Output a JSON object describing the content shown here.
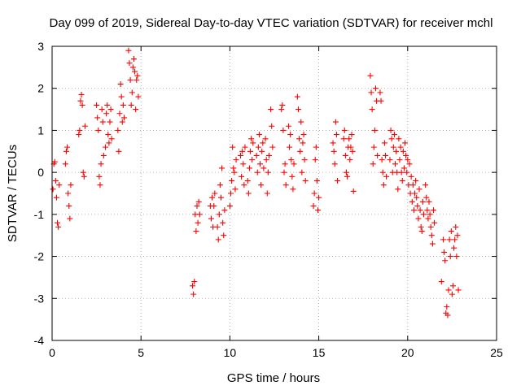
{
  "chart_data": {
    "type": "scatter",
    "title": "Day 099 of 2019, Sidereal Day-to-day VTEC variation (SDTVAR) for receiver mchl",
    "xlabel": "GPS time / hours",
    "ylabel": "SDTVAR / TECUs",
    "xlim": [
      0,
      25
    ],
    "ylim": [
      -4,
      3
    ],
    "x_ticks": [
      "0",
      "5",
      "10",
      "15",
      "20",
      "25"
    ],
    "y_ticks": [
      "-4",
      "-3",
      "-2",
      "-1",
      "0",
      "1",
      "2",
      "3"
    ],
    "grid": true,
    "marker": "+",
    "series": [
      {
        "name": "SDTVAR",
        "color": "#ff0000",
        "segments": [
          [
            0.05,
            -0.4
          ],
          [
            0.1,
            0.2
          ],
          [
            0.15,
            0.25
          ],
          [
            0.2,
            -0.2
          ],
          [
            0.25,
            -0.6
          ],
          [
            0.3,
            -1.2
          ],
          [
            0.35,
            -1.3
          ],
          [
            0.4,
            -0.3
          ],
          [
            0.75,
            0.2
          ],
          [
            0.8,
            0.5
          ],
          [
            0.85,
            0.6
          ],
          [
            0.9,
            -0.5
          ],
          [
            0.95,
            -0.8
          ],
          [
            1.0,
            -1.1
          ],
          [
            1.05,
            -0.3
          ],
          [
            1.5,
            0.9
          ],
          [
            1.55,
            1.0
          ],
          [
            1.6,
            1.7
          ],
          [
            1.65,
            1.85
          ],
          [
            1.7,
            1.6
          ],
          [
            1.75,
            0.0
          ],
          [
            1.8,
            -0.1
          ],
          [
            1.85,
            1.1
          ],
          [
            2.5,
            1.6
          ],
          [
            2.55,
            1.3
          ],
          [
            2.6,
            1.0
          ],
          [
            2.65,
            -0.1
          ],
          [
            2.7,
            -0.3
          ],
          [
            2.75,
            0.2
          ],
          [
            2.8,
            1.5
          ],
          [
            2.85,
            1.2
          ],
          [
            2.9,
            0.4
          ],
          [
            3.0,
            0.6
          ],
          [
            3.05,
            1.4
          ],
          [
            3.1,
            1.6
          ],
          [
            3.15,
            0.9
          ],
          [
            3.2,
            0.7
          ],
          [
            3.25,
            1.2
          ],
          [
            3.3,
            1.5
          ],
          [
            3.35,
            0.8
          ],
          [
            3.7,
            1.0
          ],
          [
            3.75,
            0.5
          ],
          [
            3.8,
            1.4
          ],
          [
            3.85,
            2.1
          ],
          [
            3.9,
            1.8
          ],
          [
            3.95,
            1.2
          ],
          [
            4.0,
            1.6
          ],
          [
            4.05,
            1.3
          ],
          [
            4.3,
            2.9
          ],
          [
            4.35,
            2.6
          ],
          [
            4.4,
            2.2
          ],
          [
            4.45,
            1.6
          ],
          [
            4.5,
            1.9
          ],
          [
            4.55,
            2.5
          ],
          [
            4.6,
            2.7
          ],
          [
            4.65,
            2.4
          ],
          [
            4.7,
            1.5
          ],
          [
            4.75,
            2.2
          ],
          [
            4.8,
            2.3
          ],
          [
            4.85,
            1.8
          ],
          [
            7.9,
            -2.7
          ],
          [
            7.95,
            -2.9
          ],
          [
            8.0,
            -2.6
          ],
          [
            8.05,
            -1.0
          ],
          [
            8.1,
            -1.4
          ],
          [
            8.15,
            -0.8
          ],
          [
            8.2,
            -1.2
          ],
          [
            8.25,
            -0.7
          ],
          [
            8.3,
            -1.0
          ],
          [
            8.9,
            -0.8
          ],
          [
            8.95,
            -1.1
          ],
          [
            9.0,
            -0.6
          ],
          [
            9.05,
            -1.3
          ],
          [
            9.1,
            -0.8
          ],
          [
            9.15,
            -0.5
          ],
          [
            9.3,
            -1.3
          ],
          [
            9.35,
            -1.6
          ],
          [
            9.4,
            -1.0
          ],
          [
            9.45,
            -0.3
          ],
          [
            9.5,
            -0.6
          ],
          [
            9.55,
            0.1
          ],
          [
            9.6,
            -1.2
          ],
          [
            9.65,
            -1.5
          ],
          [
            9.7,
            -0.9
          ],
          [
            10.0,
            -0.8
          ],
          [
            10.05,
            -0.5
          ],
          [
            10.1,
            -0.2
          ],
          [
            10.15,
            0.6
          ],
          [
            10.2,
            0.1
          ],
          [
            10.25,
            0.0
          ],
          [
            10.3,
            -0.4
          ],
          [
            10.35,
            0.3
          ],
          [
            10.6,
            0.4
          ],
          [
            10.65,
            -0.1
          ],
          [
            10.7,
            0.5
          ],
          [
            10.75,
            0.2
          ],
          [
            10.8,
            -0.3
          ],
          [
            10.85,
            0.6
          ],
          [
            11.0,
            -0.2
          ],
          [
            11.05,
            -0.5
          ],
          [
            11.1,
            0.1
          ],
          [
            11.15,
            0.5
          ],
          [
            11.2,
            0.8
          ],
          [
            11.25,
            0.3
          ],
          [
            11.3,
            0.7
          ],
          [
            11.5,
            0.4
          ],
          [
            11.55,
            0.0
          ],
          [
            11.6,
            0.6
          ],
          [
            11.65,
            0.9
          ],
          [
            11.7,
            0.2
          ],
          [
            11.75,
            -0.3
          ],
          [
            11.8,
            0.5
          ],
          [
            11.85,
            0.7
          ],
          [
            11.9,
            0.1
          ],
          [
            12.0,
            0.8
          ],
          [
            12.05,
            0.3
          ],
          [
            12.1,
            -0.5
          ],
          [
            12.15,
            0.0
          ],
          [
            12.2,
            0.4
          ],
          [
            12.3,
            1.5
          ],
          [
            12.35,
            1.1
          ],
          [
            12.4,
            0.6
          ],
          [
            12.9,
            1.5
          ],
          [
            12.95,
            1.6
          ],
          [
            13.0,
            1.0
          ],
          [
            13.05,
            0.0
          ],
          [
            13.1,
            0.2
          ],
          [
            13.15,
            -0.3
          ],
          [
            13.3,
            1.1
          ],
          [
            13.35,
            0.6
          ],
          [
            13.4,
            0.9
          ],
          [
            13.45,
            0.3
          ],
          [
            13.5,
            -0.1
          ],
          [
            13.55,
            -0.4
          ],
          [
            13.6,
            0.2
          ],
          [
            13.8,
            1.8
          ],
          [
            13.85,
            1.5
          ],
          [
            13.9,
            0.8
          ],
          [
            13.95,
            0.5
          ],
          [
            14.0,
            1.2
          ],
          [
            14.05,
            0.0
          ],
          [
            14.1,
            0.7
          ],
          [
            14.15,
            0.9
          ],
          [
            14.2,
            0.3
          ],
          [
            14.25,
            -0.2
          ],
          [
            14.7,
            -0.8
          ],
          [
            14.75,
            -0.5
          ],
          [
            14.8,
            0.3
          ],
          [
            14.85,
            0.6
          ],
          [
            14.9,
            -0.2
          ],
          [
            14.95,
            -0.9
          ],
          [
            15.0,
            -0.6
          ],
          [
            15.8,
            0.7
          ],
          [
            15.85,
            0.5
          ],
          [
            15.9,
            0.2
          ],
          [
            15.95,
            1.2
          ],
          [
            16.0,
            0.9
          ],
          [
            16.05,
            -0.2
          ],
          [
            16.4,
            0.8
          ],
          [
            16.45,
            1.0
          ],
          [
            16.5,
            0.4
          ],
          [
            16.55,
            0.0
          ],
          [
            16.6,
            -0.1
          ],
          [
            16.65,
            0.6
          ],
          [
            16.7,
            0.8
          ],
          [
            16.75,
            0.3
          ],
          [
            16.8,
            0.6
          ],
          [
            16.85,
            0.9
          ],
          [
            16.9,
            0.5
          ],
          [
            16.95,
            -0.45
          ],
          [
            17.9,
            2.3
          ],
          [
            17.95,
            1.9
          ],
          [
            18.0,
            1.5
          ],
          [
            18.05,
            0.2
          ],
          [
            18.1,
            0.6
          ],
          [
            18.15,
            1.0
          ],
          [
            18.2,
            2.0
          ],
          [
            18.25,
            1.7
          ],
          [
            18.3,
            0.4
          ],
          [
            18.45,
            1.9
          ],
          [
            18.5,
            1.7
          ],
          [
            18.55,
            0.3
          ],
          [
            18.6,
            0.0
          ],
          [
            18.65,
            -0.3
          ],
          [
            18.7,
            0.7
          ],
          [
            18.75,
            0.4
          ],
          [
            18.8,
            -0.1
          ],
          [
            19.0,
            0.3
          ],
          [
            19.05,
            1.0
          ],
          [
            19.1,
            0.8
          ],
          [
            19.15,
            0.0
          ],
          [
            19.2,
            0.6
          ],
          [
            19.25,
            0.9
          ],
          [
            19.3,
            0.2
          ],
          [
            19.35,
            0.5
          ],
          [
            19.4,
            0.0
          ],
          [
            19.45,
            -0.4
          ],
          [
            19.5,
            0.8
          ],
          [
            19.55,
            0.3
          ],
          [
            19.6,
            0.6
          ],
          [
            19.65,
            0.0
          ],
          [
            19.7,
            -0.2
          ],
          [
            19.75,
            0.5
          ],
          [
            19.8,
            0.1
          ],
          [
            19.85,
            0.7
          ],
          [
            19.9,
            0.4
          ],
          [
            19.95,
            0.0
          ],
          [
            20.0,
            0.3
          ],
          [
            20.05,
            -0.3
          ],
          [
            20.1,
            0.2
          ],
          [
            20.15,
            -0.5
          ],
          [
            20.2,
            -0.1
          ],
          [
            20.25,
            -0.7
          ],
          [
            20.3,
            -0.3
          ],
          [
            20.35,
            -0.9
          ],
          [
            20.4,
            -0.5
          ],
          [
            20.45,
            -0.2
          ],
          [
            20.5,
            -0.6
          ],
          [
            20.55,
            -0.8
          ],
          [
            20.6,
            -1.1
          ],
          [
            20.65,
            -0.4
          ],
          [
            20.7,
            -0.9
          ],
          [
            20.75,
            -1.3
          ],
          [
            20.8,
            -1.4
          ],
          [
            20.85,
            -0.7
          ],
          [
            20.9,
            -1.0
          ],
          [
            21.0,
            -0.3
          ],
          [
            21.05,
            -0.6
          ],
          [
            21.1,
            -0.9
          ],
          [
            21.15,
            -1.1
          ],
          [
            21.2,
            -0.7
          ],
          [
            21.25,
            -1.0
          ],
          [
            21.3,
            -1.3
          ],
          [
            21.35,
            -1.5
          ],
          [
            21.4,
            -1.7
          ],
          [
            21.45,
            -0.9
          ],
          [
            21.5,
            -1.2
          ],
          [
            21.9,
            -2.6
          ],
          [
            22.0,
            -1.6
          ],
          [
            22.05,
            -1.9
          ],
          [
            22.1,
            -2.1
          ],
          [
            22.15,
            -3.35
          ],
          [
            22.2,
            -3.2
          ],
          [
            22.25,
            -3.4
          ],
          [
            22.3,
            -2.8
          ],
          [
            22.35,
            -1.6
          ],
          [
            22.4,
            -2.0
          ],
          [
            22.45,
            -1.4
          ],
          [
            22.5,
            -2.9
          ],
          [
            22.55,
            -2.7
          ],
          [
            22.6,
            -1.8
          ],
          [
            22.65,
            -1.6
          ],
          [
            22.7,
            -1.3
          ],
          [
            22.75,
            -2.0
          ],
          [
            22.8,
            -1.5
          ],
          [
            22.85,
            -2.8
          ]
        ]
      }
    ]
  }
}
